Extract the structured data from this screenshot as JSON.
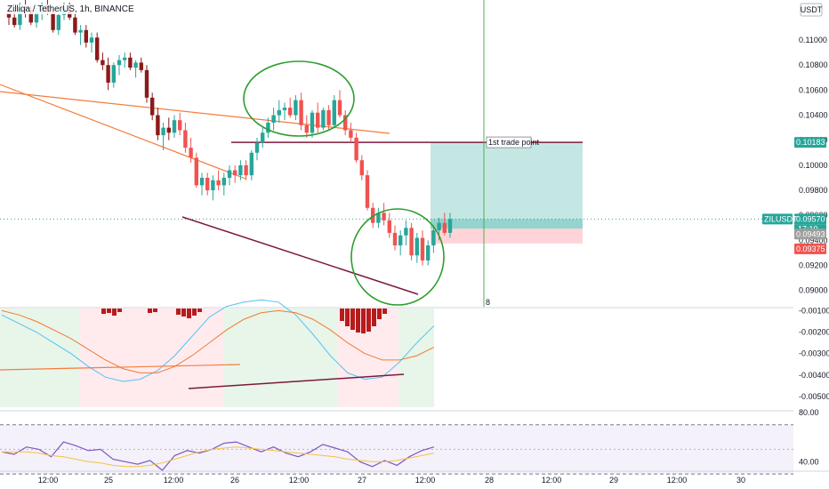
{
  "header": {
    "title": "Zilliqa / TetherUS, 1h, BINANCE",
    "currency": "USDT"
  },
  "annotations": {
    "trade_label": "1st trade point",
    "cursor_marker": "8"
  },
  "tags": {
    "target_price": "0.10183",
    "symbol": "ZILUSDT",
    "last_price": "0.09570",
    "countdown": "17:10",
    "entry_price": "0.09493",
    "stop_price": "0.09375"
  },
  "colors": {
    "up": "#26a69a",
    "down": "#ef5350",
    "hist_down": "#b71c1c",
    "trendline": "#7b1a3a",
    "orange_line": "#f57c3c",
    "oscillator_blue": "#4fc3f7",
    "oscillator_orange": "#ef7c34",
    "circle": "#2e9e2e",
    "rsi": "#7e57c2",
    "rsi_ma": "#f5c242"
  },
  "chart_data": [
    {
      "type": "candlestick",
      "title": "Zilliqa / TetherUS, 1h, BINANCE",
      "y_axis_ticks": [
        "0.11000",
        "0.10800",
        "0.10600",
        "0.10400",
        "0.10200",
        "0.10000",
        "0.09800",
        "0.09600",
        "0.09400",
        "0.09200",
        "0.09000"
      ],
      "ylim": [
        0.0887,
        0.1132
      ],
      "x_axis_ticks": [
        "12:00",
        "25",
        "12:00",
        "26",
        "12:00",
        "27",
        "12:00",
        "28",
        "12:00",
        "29",
        "12:00",
        "30"
      ],
      "ohlc": [
        [
          0.1122,
          0.1128,
          0.1112,
          0.1118
        ],
        [
          0.1118,
          0.1124,
          0.111,
          0.1112
        ],
        [
          0.1112,
          0.113,
          0.1108,
          0.1126
        ],
        [
          0.1126,
          0.1132,
          0.1118,
          0.1124
        ],
        [
          0.1124,
          0.1128,
          0.1112,
          0.1114
        ],
        [
          0.1114,
          0.1126,
          0.111,
          0.1122
        ],
        [
          0.1122,
          0.113,
          0.1116,
          0.1128
        ],
        [
          0.1128,
          0.1132,
          0.112,
          0.1122
        ],
        [
          0.1122,
          0.1126,
          0.1106,
          0.1108
        ],
        [
          0.1108,
          0.1122,
          0.1104,
          0.112
        ],
        [
          0.112,
          0.113,
          0.1116,
          0.1126
        ],
        [
          0.1126,
          0.113,
          0.1116,
          0.1118
        ],
        [
          0.1118,
          0.1122,
          0.1104,
          0.1106
        ],
        [
          0.1106,
          0.1112,
          0.1096,
          0.1108
        ],
        [
          0.1108,
          0.1112,
          0.1094,
          0.1098
        ],
        [
          0.1098,
          0.1106,
          0.109,
          0.1102
        ],
        [
          0.1102,
          0.1106,
          0.1082,
          0.1084
        ],
        [
          0.1084,
          0.109,
          0.1076,
          0.108
        ],
        [
          0.108,
          0.1086,
          0.106,
          0.1066
        ],
        [
          0.1066,
          0.1082,
          0.1062,
          0.108
        ],
        [
          0.108,
          0.1088,
          0.1072,
          0.1084
        ],
        [
          0.1084,
          0.109,
          0.1078,
          0.1086
        ],
        [
          0.1086,
          0.109,
          0.1076,
          0.1078
        ],
        [
          0.1078,
          0.1084,
          0.107,
          0.1082
        ],
        [
          0.1082,
          0.1086,
          0.1074,
          0.1076
        ],
        [
          0.1076,
          0.108,
          0.105,
          0.1054
        ],
        [
          0.1054,
          0.1058,
          0.1036,
          0.104
        ],
        [
          0.104,
          0.1046,
          0.102,
          0.1024
        ],
        [
          0.1024,
          0.1034,
          0.1012,
          0.103
        ],
        [
          0.103,
          0.1038,
          0.102,
          0.1026
        ],
        [
          0.1026,
          0.104,
          0.1022,
          0.1036
        ],
        [
          0.1036,
          0.1042,
          0.1024,
          0.1028
        ],
        [
          0.1028,
          0.1034,
          0.101,
          0.1014
        ],
        [
          0.1014,
          0.1022,
          0.1002,
          0.1006
        ],
        [
          0.1006,
          0.101,
          0.0982,
          0.0984
        ],
        [
          0.0984,
          0.0994,
          0.0976,
          0.099
        ],
        [
          0.099,
          0.0994,
          0.0976,
          0.098
        ],
        [
          0.098,
          0.0992,
          0.0972,
          0.0988
        ],
        [
          0.0988,
          0.0996,
          0.098,
          0.0984
        ],
        [
          0.0984,
          0.0994,
          0.0976,
          0.099
        ],
        [
          0.099,
          0.1,
          0.0984,
          0.0996
        ],
        [
          0.0996,
          0.1,
          0.0986,
          0.0992
        ],
        [
          0.0992,
          0.1004,
          0.0988,
          0.1
        ],
        [
          0.1,
          0.1004,
          0.0988,
          0.0992
        ],
        [
          0.0992,
          0.1012,
          0.0988,
          0.101
        ],
        [
          0.101,
          0.1022,
          0.1004,
          0.1018
        ],
        [
          0.1018,
          0.103,
          0.1014,
          0.1026
        ],
        [
          0.1026,
          0.1038,
          0.1022,
          0.1034
        ],
        [
          0.1034,
          0.1046,
          0.1028,
          0.104
        ],
        [
          0.104,
          0.1052,
          0.1034,
          0.1044
        ],
        [
          0.1044,
          0.105,
          0.1036,
          0.1046
        ],
        [
          0.1046,
          0.1054,
          0.1038,
          0.104
        ],
        [
          0.104,
          0.1056,
          0.1036,
          0.1052
        ],
        [
          0.1052,
          0.1058,
          0.1028,
          0.1032
        ],
        [
          0.1032,
          0.104,
          0.1022,
          0.1026
        ],
        [
          0.1026,
          0.1044,
          0.1022,
          0.1042
        ],
        [
          0.1042,
          0.105,
          0.1026,
          0.103
        ],
        [
          0.103,
          0.1046,
          0.1028,
          0.1044
        ],
        [
          0.1044,
          0.1048,
          0.1028,
          0.1032
        ],
        [
          0.1032,
          0.1056,
          0.103,
          0.1052
        ],
        [
          0.1052,
          0.106,
          0.1038,
          0.104
        ],
        [
          0.104,
          0.1044,
          0.1024,
          0.1028
        ],
        [
          0.1028,
          0.1034,
          0.1018,
          0.1022
        ],
        [
          0.1022,
          0.1026,
          0.1002,
          0.1004
        ],
        [
          0.1004,
          0.1008,
          0.0988,
          0.0992
        ],
        [
          0.0992,
          0.0996,
          0.0964,
          0.0966
        ],
        [
          0.0966,
          0.097,
          0.095,
          0.0954
        ],
        [
          0.0954,
          0.0966,
          0.095,
          0.0962
        ],
        [
          0.0962,
          0.097,
          0.0952,
          0.0956
        ],
        [
          0.0956,
          0.0962,
          0.0942,
          0.0946
        ],
        [
          0.0946,
          0.0952,
          0.0932,
          0.0936
        ],
        [
          0.0936,
          0.0948,
          0.0928,
          0.0944
        ],
        [
          0.0944,
          0.0956,
          0.0936,
          0.095
        ],
        [
          0.095,
          0.0954,
          0.0924,
          0.0928
        ],
        [
          0.0928,
          0.0946,
          0.0922,
          0.0942
        ],
        [
          0.0942,
          0.0948,
          0.092,
          0.0924
        ],
        [
          0.0924,
          0.094,
          0.092,
          0.0936
        ],
        [
          0.0936,
          0.0952,
          0.093,
          0.0948
        ],
        [
          0.0948,
          0.0958,
          0.094,
          0.0954
        ],
        [
          0.0954,
          0.0962,
          0.0944,
          0.0946
        ],
        [
          0.0946,
          0.0962,
          0.0942,
          0.0957
        ]
      ]
    },
    {
      "type": "histogram",
      "y_axis_ticks": [
        "-0.00100",
        "-0.00200",
        "-0.00300",
        "-0.00400",
        "-0.00500"
      ],
      "ylim": [
        -0.0055,
        -0.0009
      ],
      "lines": [
        {
          "color": "oscillator_blue",
          "values": [
            -0.0012,
            -0.0016,
            -0.002,
            -0.0025,
            -0.003,
            -0.0036,
            -0.0041,
            -0.0043,
            -0.0042,
            -0.0038,
            -0.0031,
            -0.0022,
            -0.0013,
            -0.0008,
            -0.0006,
            -0.0005,
            -0.0006,
            -0.0012,
            -0.0021,
            -0.0031,
            -0.0039,
            -0.0042,
            -0.0041,
            -0.0034,
            -0.0025,
            -0.0017
          ]
        },
        {
          "color": "oscillator_orange",
          "values": [
            -0.001,
            -0.0012,
            -0.0015,
            -0.0019,
            -0.0023,
            -0.0028,
            -0.0033,
            -0.0037,
            -0.0039,
            -0.0039,
            -0.0036,
            -0.0031,
            -0.0025,
            -0.0019,
            -0.0014,
            -0.0011,
            -0.001,
            -0.0011,
            -0.0014,
            -0.0019,
            -0.0025,
            -0.003,
            -0.0033,
            -0.0033,
            -0.0031,
            -0.0027
          ]
        }
      ]
    },
    {
      "type": "line",
      "y_axis_ticks": [
        "80.00",
        "40.00"
      ],
      "ylim": [
        20,
        90
      ],
      "series": [
        {
          "color": "rsi",
          "values": [
            48,
            46,
            52,
            50,
            44,
            56,
            53,
            49,
            50,
            42,
            40,
            38,
            41,
            33,
            45,
            49,
            47,
            50,
            55,
            56,
            52,
            48,
            52,
            47,
            44,
            48,
            54,
            51,
            48,
            40,
            36,
            41,
            37,
            44,
            49,
            52
          ]
        },
        {
          "color": "rsi_ma",
          "values": [
            48,
            48,
            48,
            47,
            45,
            44,
            42,
            40,
            39,
            37,
            36,
            36,
            37,
            39,
            42,
            45,
            48,
            50,
            51,
            52,
            51,
            50,
            49,
            48,
            47,
            46,
            45,
            44,
            42,
            41,
            40,
            40,
            41,
            43,
            45,
            47
          ]
        }
      ]
    }
  ]
}
